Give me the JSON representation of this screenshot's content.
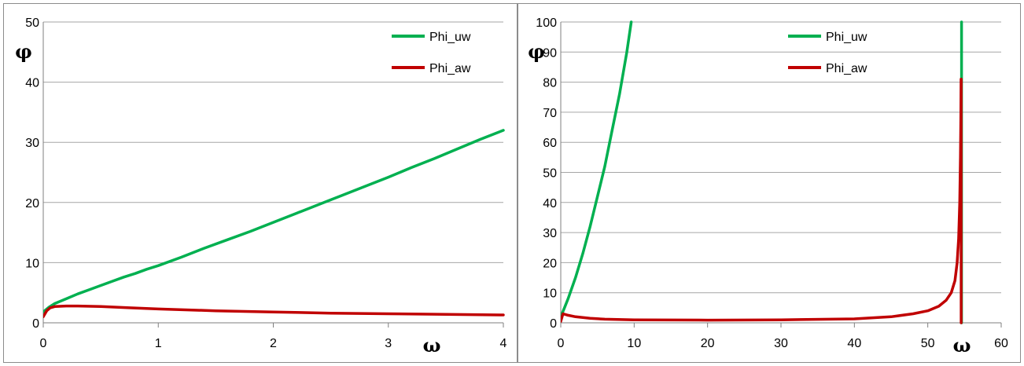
{
  "chart_data": [
    {
      "type": "line",
      "title": "",
      "xlabel": "ω",
      "ylabel": "φ",
      "xlim": [
        0,
        4
      ],
      "ylim": [
        0,
        50
      ],
      "xticks": [
        0,
        1,
        2,
        3,
        4
      ],
      "yticks": [
        0,
        10,
        20,
        30,
        40,
        50
      ],
      "grid": "horizontal",
      "legend_position": "top-right",
      "series": [
        {
          "name": "Phi_uw",
          "color": "#00b050",
          "x": [
            0,
            0.05,
            0.1,
            0.2,
            0.3,
            0.4,
            0.5,
            0.6,
            0.7,
            0.8,
            0.9,
            1.0,
            1.2,
            1.4,
            1.6,
            1.8,
            2.0,
            2.2,
            2.4,
            2.6,
            2.8,
            3.0,
            3.2,
            3.4,
            3.6,
            3.8,
            4.0
          ],
          "y": [
            1.8,
            2.6,
            3.2,
            4.0,
            4.8,
            5.5,
            6.2,
            6.9,
            7.6,
            8.2,
            8.9,
            9.5,
            10.9,
            12.4,
            13.8,
            15.2,
            16.7,
            18.2,
            19.7,
            21.2,
            22.7,
            24.2,
            25.8,
            27.3,
            28.9,
            30.5,
            32.0
          ]
        },
        {
          "name": "Phi_aw",
          "color": "#c00000",
          "x": [
            0,
            0.03,
            0.06,
            0.1,
            0.2,
            0.3,
            0.5,
            0.75,
            1.0,
            1.5,
            2.0,
            2.5,
            3.0,
            3.5,
            4.0
          ],
          "y": [
            1.0,
            2.0,
            2.5,
            2.7,
            2.8,
            2.8,
            2.7,
            2.5,
            2.3,
            2.0,
            1.8,
            1.6,
            1.5,
            1.4,
            1.3
          ]
        }
      ]
    },
    {
      "type": "line",
      "title": "",
      "xlabel": "ω",
      "ylabel": "φ",
      "xlim": [
        0,
        60
      ],
      "ylim": [
        0,
        100
      ],
      "xticks": [
        0,
        10,
        20,
        30,
        40,
        50,
        60
      ],
      "yticks": [
        0,
        10,
        20,
        30,
        40,
        50,
        60,
        70,
        80,
        90,
        100
      ],
      "grid": "horizontal",
      "legend_position": "top-right",
      "series": [
        {
          "name": "Phi_uw",
          "color": "#00b050",
          "segments": [
            {
              "x": [
                0,
                0.5,
                1,
                2,
                3,
                4,
                5,
                6,
                7,
                8,
                9,
                9.6
              ],
              "y": [
                2,
                5,
                8,
                15,
                23,
                32,
                42,
                52,
                64,
                76,
                90,
                100
              ]
            },
            {
              "x": [
                54.6,
                54.6
              ],
              "y": [
                0,
                100
              ]
            }
          ]
        },
        {
          "name": "Phi_aw",
          "color": "#c00000",
          "segments": [
            {
              "x": [
                0,
                0.3,
                1,
                2,
                4,
                6,
                10,
                20,
                30,
                40,
                45,
                48,
                50,
                51.5,
                52.5,
                53.2,
                53.7,
                54.0,
                54.2,
                54.35,
                54.45,
                54.5,
                54.55
              ],
              "y": [
                0.5,
                3,
                2.5,
                2,
                1.5,
                1.2,
                1,
                0.9,
                1,
                1.3,
                2,
                3,
                4,
                5.5,
                7.5,
                10,
                14,
                20,
                28,
                40,
                55,
                68,
                81
              ]
            },
            {
              "x": [
                54.55,
                54.55
              ],
              "y": [
                81,
                0
              ]
            }
          ]
        }
      ]
    }
  ]
}
